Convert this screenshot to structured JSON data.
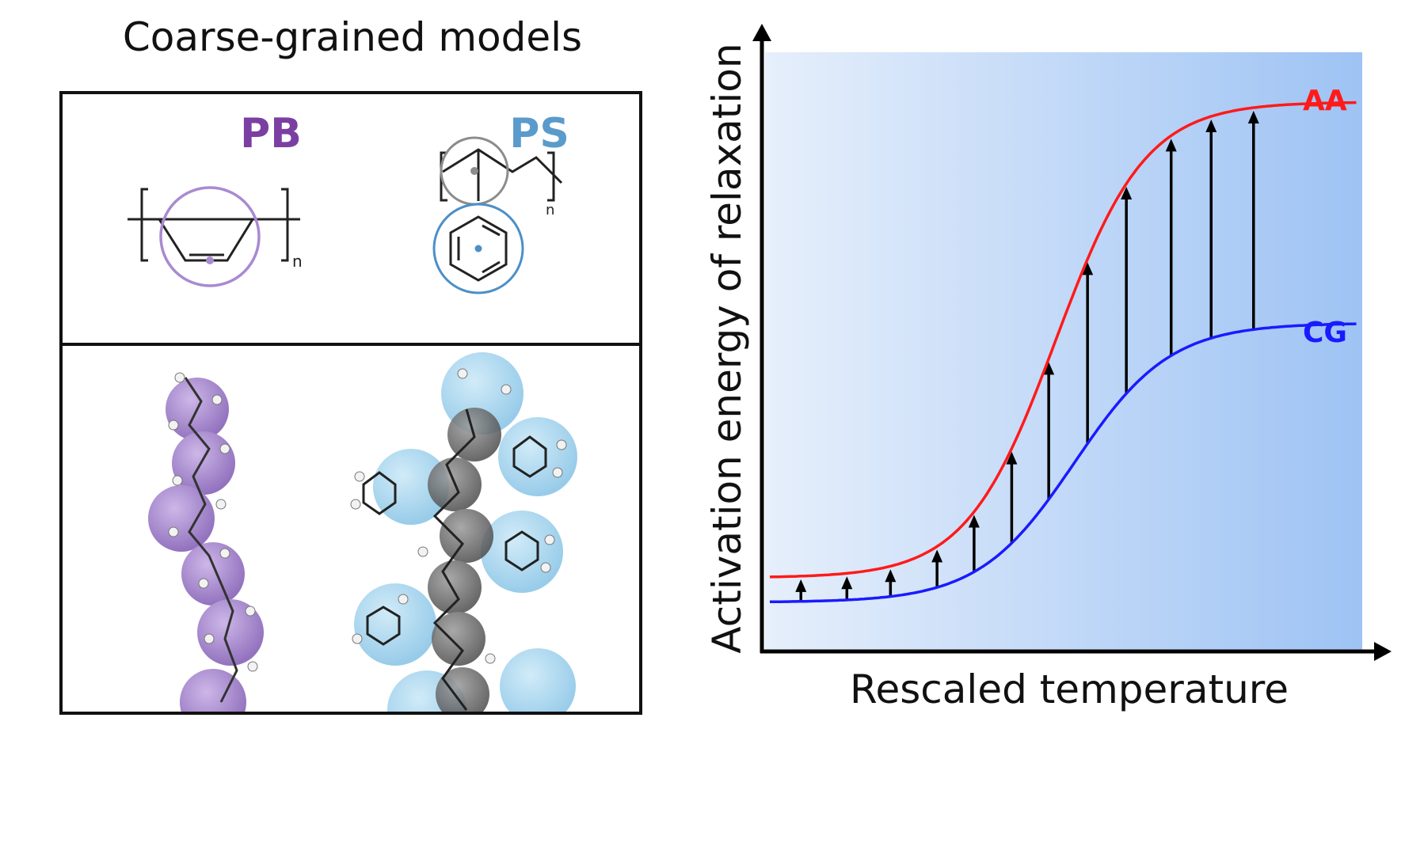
{
  "left_panel": {
    "title": "Coarse-grained models",
    "pb": {
      "label": "PB",
      "color": "#7b3fa3",
      "sub": "n",
      "bead_color": "#9e7dc8"
    },
    "ps": {
      "label": "PS",
      "color": "#5a9bcc",
      "sub": "n",
      "backbone_bead_color": "#7f7f7f",
      "phenyl_bead_color": "#4c8fc7"
    }
  },
  "chart_data": {
    "type": "line",
    "xlabel": "Rescaled temperature",
    "ylabel": "Activation energy of relaxation",
    "xlim": [
      0,
      1
    ],
    "ylim": [
      0,
      1
    ],
    "grid": false,
    "background_gradient": [
      "#e6effb",
      "#9ec3f4"
    ],
    "series": [
      {
        "name": "AA",
        "color": "#ff1a1a",
        "low": 0.123,
        "high": 0.917,
        "midpoint": 0.487,
        "width": 0.075
      },
      {
        "name": "CG",
        "color": "#1a1aff",
        "low": 0.082,
        "high": 0.548,
        "midpoint": 0.518,
        "width": 0.08
      }
    ],
    "arrows_x": [
      0.06,
      0.137,
      0.21,
      0.288,
      0.35,
      0.413,
      0.475,
      0.54,
      0.605,
      0.68,
      0.747,
      0.818
    ]
  }
}
